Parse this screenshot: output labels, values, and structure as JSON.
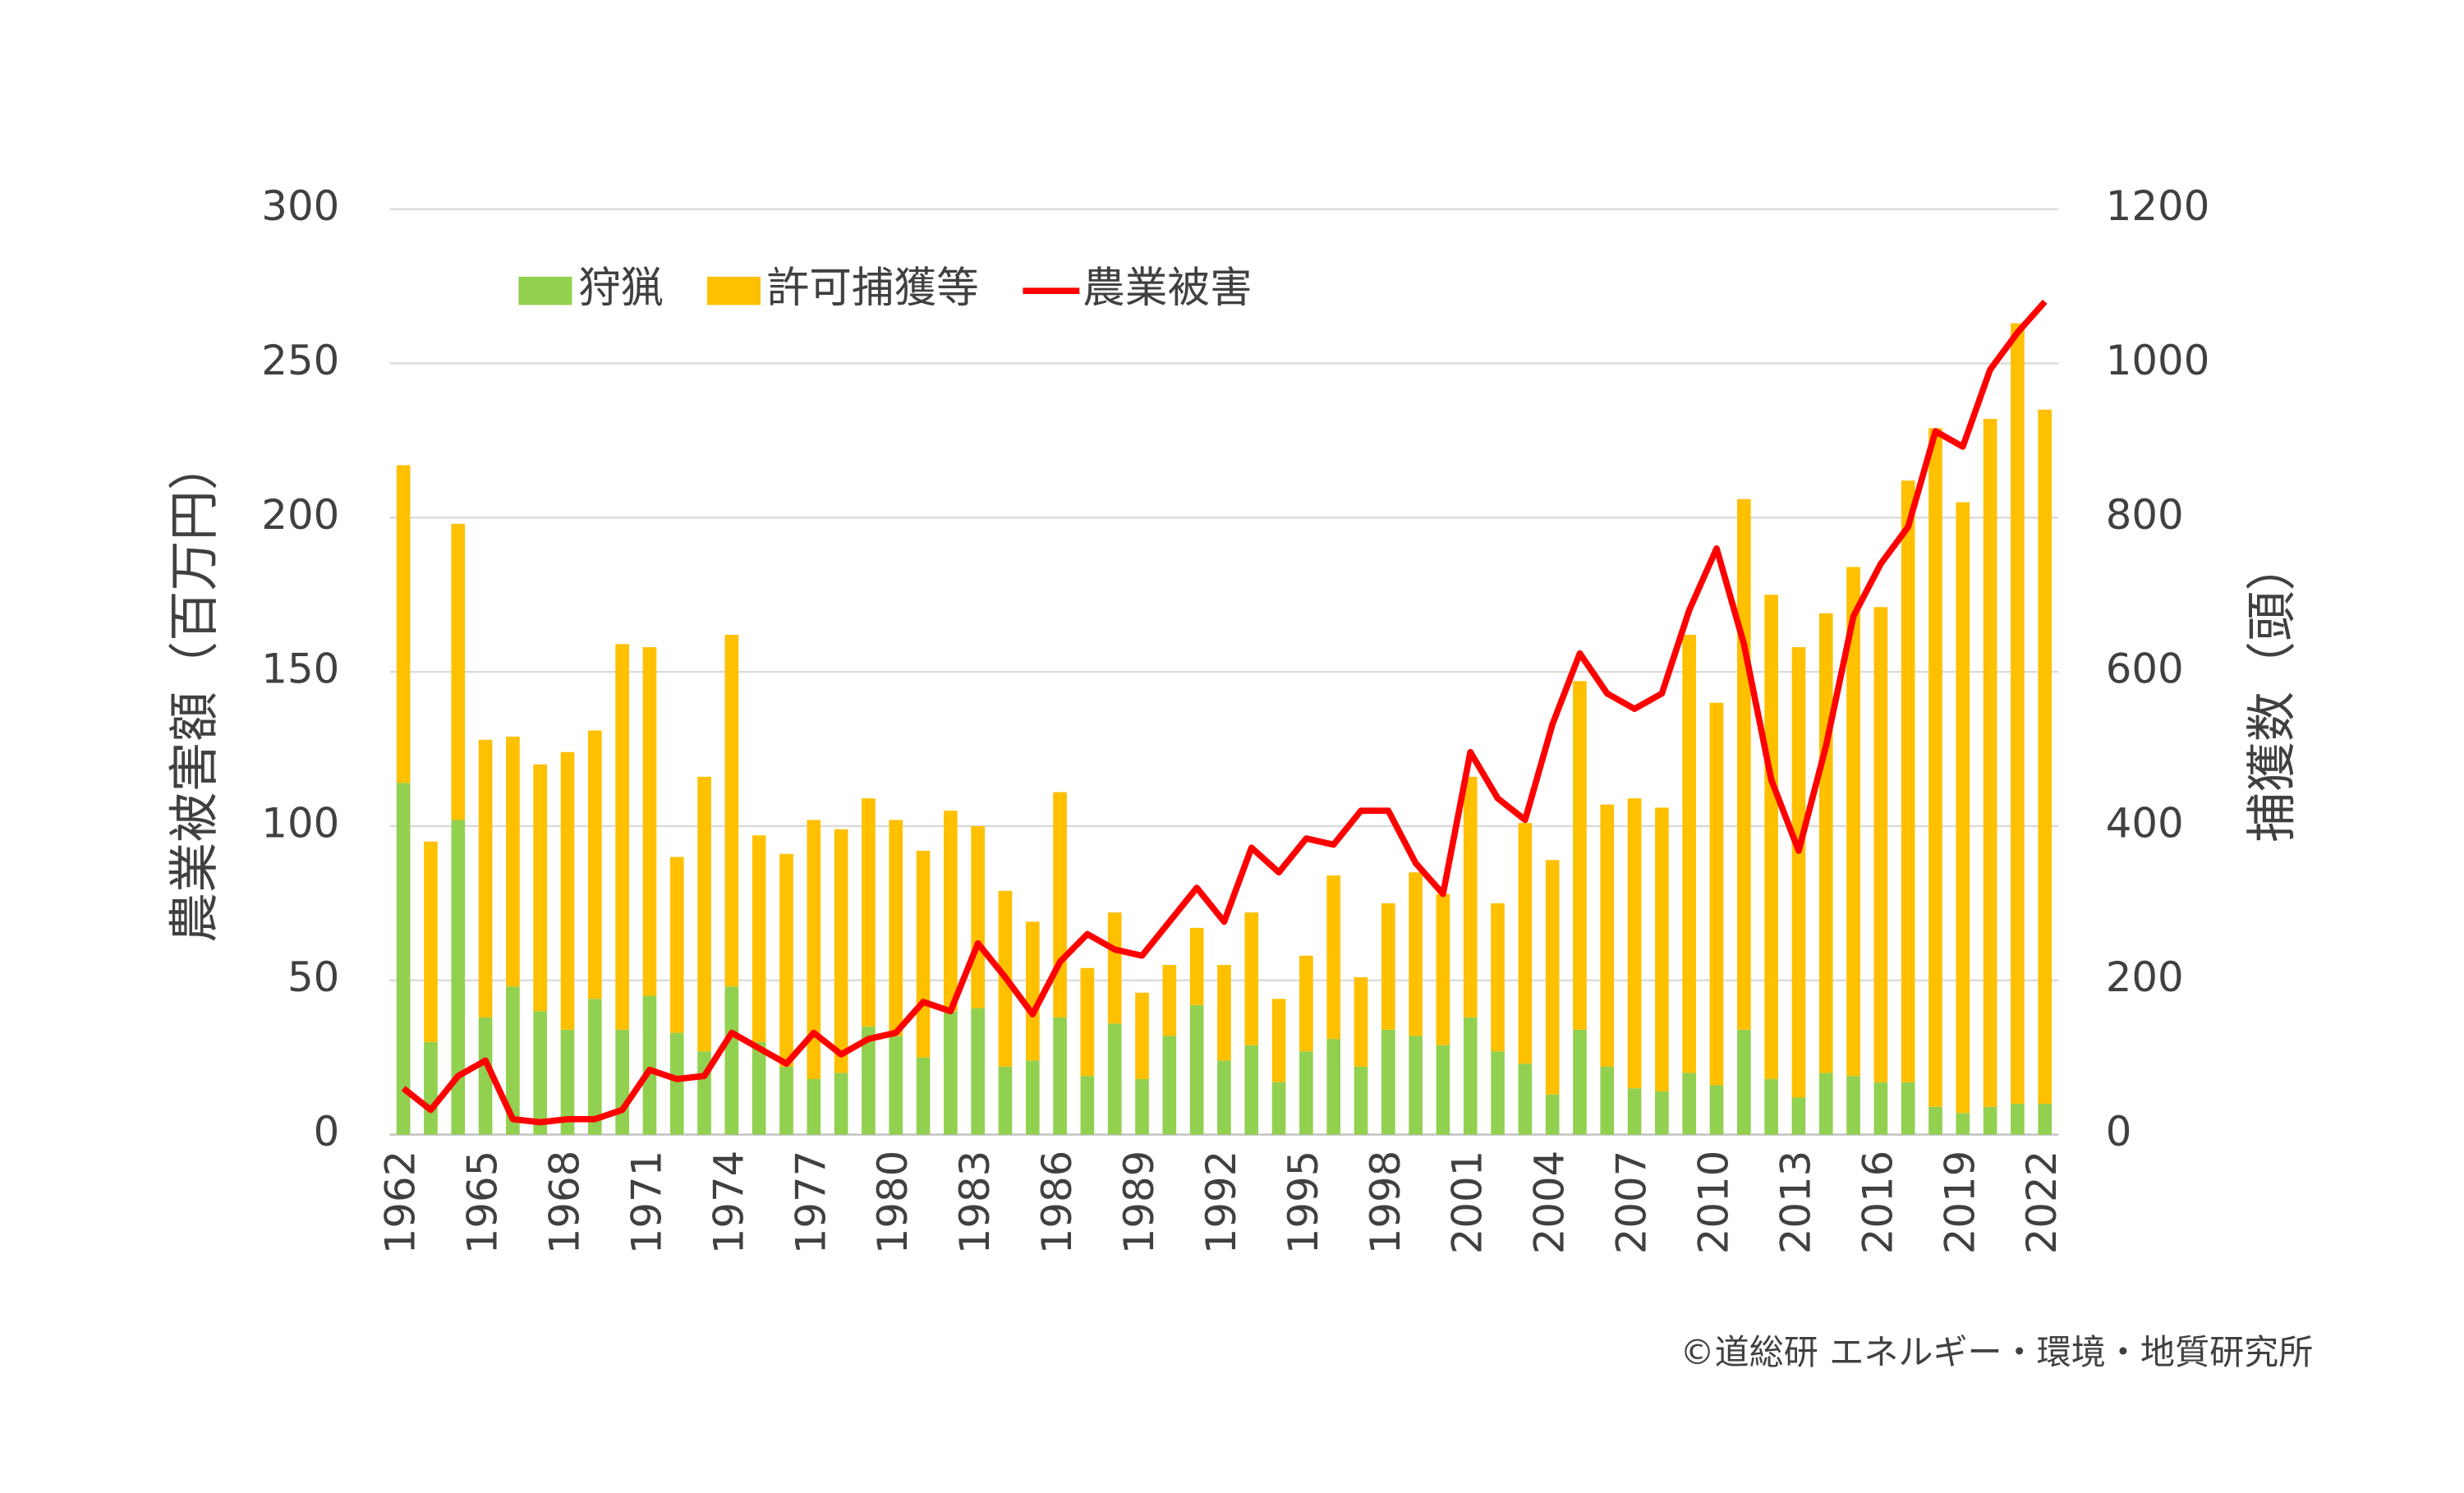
{
  "chart_data": {
    "type": "bar",
    "categories": [
      "1962",
      null,
      null,
      "1965",
      null,
      null,
      "1968",
      null,
      null,
      "1971",
      null,
      null,
      "1974",
      null,
      null,
      "1977",
      null,
      null,
      "1980",
      null,
      null,
      "1983",
      null,
      null,
      "1986",
      null,
      null,
      "1989",
      null,
      null,
      "1992",
      null,
      null,
      "1995",
      null,
      null,
      "1998",
      null,
      null,
      "2001",
      null,
      null,
      "2004",
      null,
      null,
      "2007",
      null,
      null,
      "2010",
      null,
      null,
      "2013",
      null,
      null,
      "2016",
      null,
      null,
      "2019",
      null,
      null,
      "2022"
    ],
    "series": [
      {
        "name": "狩猟",
        "color": "#92d050",
        "axis": "y2",
        "type": "bar",
        "values": [
          456,
          120,
          408,
          152,
          192,
          160,
          136,
          176,
          136,
          180,
          132,
          108,
          192,
          120,
          88,
          72,
          80,
          140,
          128,
          100,
          160,
          164,
          88,
          96,
          152,
          76,
          144,
          72,
          128,
          168,
          96,
          116,
          68,
          108,
          124,
          88,
          136,
          128,
          116,
          152,
          108,
          92,
          52,
          136,
          88,
          60,
          56,
          80,
          64,
          136,
          72,
          48,
          80,
          76,
          68,
          68,
          36,
          28,
          36,
          40,
          40
        ]
      },
      {
        "name": "許可捕獲等",
        "color": "#ffc000",
        "axis": "y2",
        "type": "bar",
        "values": [
          412,
          260,
          384,
          360,
          324,
          320,
          360,
          348,
          500,
          452,
          228,
          356,
          456,
          268,
          276,
          336,
          316,
          296,
          280,
          268,
          260,
          236,
          228,
          180,
          292,
          140,
          144,
          112,
          92,
          100,
          124,
          172,
          108,
          124,
          212,
          116,
          164,
          212,
          196,
          312,
          192,
          312,
          304,
          452,
          340,
          376,
          368,
          568,
          496,
          688,
          628,
          584,
          596,
          660,
          616,
          780,
          880,
          792,
          892,
          1012,
          900
        ]
      },
      {
        "name": "農業被害",
        "color": "#ff0000",
        "type": "line",
        "values": [
          15,
          8,
          19,
          24,
          5,
          4,
          5,
          5,
          8,
          21,
          18,
          19,
          33,
          28,
          23,
          33,
          26,
          31,
          33,
          43,
          40,
          62,
          51,
          39,
          56,
          65,
          60,
          58,
          69,
          80,
          69,
          93,
          85,
          96,
          94,
          105,
          105,
          88,
          78,
          124,
          109,
          102,
          133,
          156,
          143,
          138,
          143,
          170,
          190,
          159,
          115,
          92,
          126,
          168,
          185,
          197,
          228,
          223,
          248,
          260,
          270
        ]
      }
    ],
    "ylabel": "農業被害額（百万円）",
    "y2label": "捕獲数（頭）",
    "ylim": [
      0,
      300
    ],
    "yticks": [
      0,
      50,
      100,
      150,
      200,
      250,
      300
    ],
    "y2lim": [
      0,
      1200
    ],
    "y2ticks": [
      0,
      200,
      400,
      600,
      800,
      1000,
      1200
    ],
    "grid": true,
    "legend": "top",
    "source": "©道総研 エネルギー・環境・地質研究所"
  }
}
